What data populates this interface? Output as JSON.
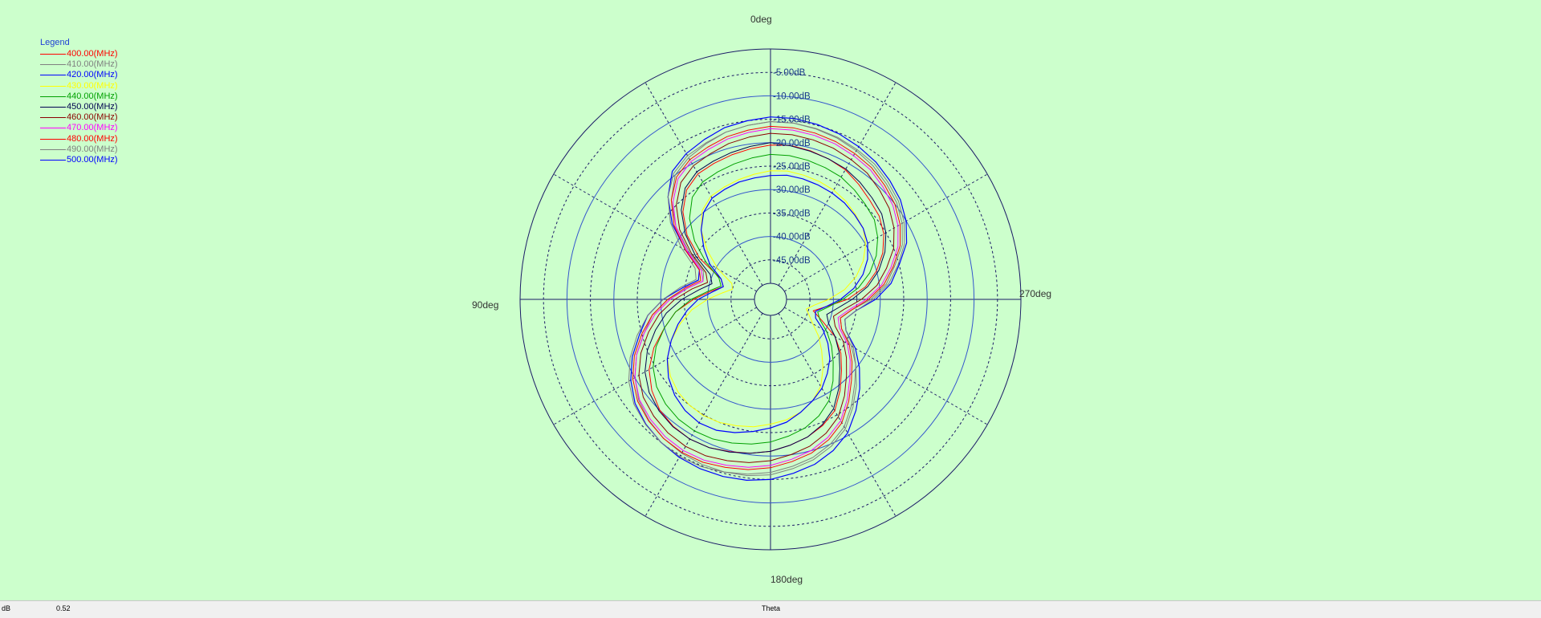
{
  "chart_data": {
    "type": "polar",
    "title": "",
    "legend": {
      "title": "Legend",
      "placement": "top-left"
    },
    "angle_labels": {
      "top": "0deg",
      "left": "90deg",
      "bottom": "180deg",
      "right": "270deg"
    },
    "angle_direction": "counterclockwise",
    "radial_unit": "dB",
    "radial_range": [
      -50,
      0
    ],
    "radial_ticks": [
      -5,
      -10,
      -15,
      -20,
      -25,
      -30,
      -35,
      -40,
      -45
    ],
    "radial_tick_labels": [
      "-5.00dB",
      "-10.00dB",
      "-15.00dB",
      "-20.00dB",
      "-25.00dB",
      "-30.00dB",
      "-35.00dB",
      "-40.00dB",
      "-45.00dB"
    ],
    "angle_grid_step_deg": 30,
    "grid": true,
    "series": [
      {
        "name": "400.00(MHz)",
        "color": "#ff0000",
        "width": 1.0,
        "values": [
          -20.5,
          -21.0,
          -21.5,
          -22.0,
          -22.5,
          -24.0,
          -27.0,
          -31.0,
          -36.0,
          -42.0,
          -43.0,
          -40.5,
          -37.0,
          -33.0,
          -30.0,
          -26.5,
          -23.5,
          -21.5,
          -20.0,
          -19.3,
          -19.0,
          -19.2,
          -19.8,
          -20.3,
          -21.0,
          -22.0,
          -23.0,
          -24.3,
          -26.0,
          -29.0,
          -32.0,
          -34.5,
          -37.5,
          -41.5,
          -44.0,
          -41.5,
          -37.0,
          -33.0,
          -30.0,
          -27.5,
          -25.5,
          -24.2,
          -23.5,
          -22.5,
          -21.5,
          -21.0,
          -20.6,
          -20.3,
          -20.4
        ]
      },
      {
        "name": "410.00(MHz)",
        "color": "#808080",
        "width": 1.0,
        "values": [
          -15.5,
          -16.0,
          -16.5,
          -17.5,
          -18.5,
          -20.0,
          -23.5,
          -28.0,
          -33.5,
          -38.0,
          -38.5,
          -35.5,
          -31.5,
          -28.0,
          -25.5,
          -22.5,
          -20.0,
          -18.0,
          -16.8,
          -16.0,
          -15.5,
          -15.3,
          -15.3,
          -15.5,
          -16.0,
          -17.0,
          -18.0,
          -19.5,
          -21.5,
          -24.5,
          -27.5,
          -30.5,
          -33.5,
          -37.0,
          -38.0,
          -36.0,
          -32.0,
          -28.5,
          -26.0,
          -23.0,
          -21.0,
          -19.5,
          -18.5,
          -17.5,
          -16.8,
          -16.2,
          -15.8,
          -15.5,
          -15.6
        ]
      },
      {
        "name": "420.00(MHz)",
        "color": "#0000ff",
        "width": 1.2,
        "values": [
          -14.5,
          -15.0,
          -15.5,
          -16.5,
          -17.5,
          -19.0,
          -22.5,
          -27.0,
          -32.5,
          -37.0,
          -37.5,
          -34.5,
          -30.5,
          -27.0,
          -24.5,
          -21.5,
          -19.0,
          -17.0,
          -15.8,
          -15.0,
          -14.5,
          -14.3,
          -14.3,
          -14.5,
          -15.0,
          -16.0,
          -17.0,
          -18.5,
          -20.5,
          -23.5,
          -26.5,
          -29.5,
          -32.5,
          -36.0,
          -37.0,
          -35.0,
          -31.0,
          -27.5,
          -25.0,
          -22.0,
          -20.0,
          -18.5,
          -17.5,
          -16.5,
          -15.8,
          -15.2,
          -14.8,
          -14.5,
          -14.6
        ]
      },
      {
        "name": "430.00(MHz)",
        "color": "#ffff00",
        "width": 1.0,
        "values": [
          -26.0,
          -26.5,
          -27.0,
          -27.5,
          -28.0,
          -29.5,
          -32.5,
          -36.5,
          -40.5,
          -44.5,
          -45.0,
          -43.0,
          -40.0,
          -36.5,
          -33.5,
          -30.5,
          -28.0,
          -26.5,
          -25.5,
          -25.0,
          -24.8,
          -25.0,
          -25.5,
          -26.0,
          -26.8,
          -27.5,
          -28.5,
          -30.0,
          -32.0,
          -35.0,
          -38.0,
          -40.5,
          -43.0,
          -44.5,
          -45.5,
          -44.0,
          -41.0,
          -37.5,
          -34.5,
          -32.0,
          -30.0,
          -28.5,
          -27.8,
          -27.0,
          -26.5,
          -26.2,
          -26.0,
          -25.8,
          -25.9
        ]
      },
      {
        "name": "440.00(MHz)",
        "color": "#00a000",
        "width": 1.0,
        "values": [
          -22.5,
          -23.0,
          -23.5,
          -24.0,
          -24.5,
          -26.0,
          -29.0,
          -33.0,
          -37.5,
          -41.5,
          -42.5,
          -40.0,
          -36.5,
          -33.0,
          -30.0,
          -27.0,
          -24.5,
          -22.8,
          -21.8,
          -21.2,
          -21.0,
          -21.2,
          -21.7,
          -22.3,
          -23.0,
          -24.0,
          -25.0,
          -26.5,
          -28.5,
          -31.5,
          -34.5,
          -37.0,
          -39.5,
          -42.0,
          -43.0,
          -41.0,
          -38.0,
          -34.5,
          -31.5,
          -29.0,
          -27.0,
          -25.5,
          -24.8,
          -24.0,
          -23.3,
          -23.0,
          -22.7,
          -22.5,
          -22.6
        ]
      },
      {
        "name": "450.00(MHz)",
        "color": "#000050",
        "width": 1.0,
        "values": [
          -20.0,
          -20.5,
          -21.0,
          -21.5,
          -22.0,
          -23.5,
          -26.5,
          -30.5,
          -35.0,
          -39.5,
          -40.5,
          -38.0,
          -34.5,
          -31.0,
          -28.0,
          -25.0,
          -22.5,
          -20.8,
          -19.8,
          -19.2,
          -19.0,
          -19.2,
          -19.7,
          -20.3,
          -21.0,
          -22.0,
          -23.0,
          -24.5,
          -26.5,
          -29.5,
          -32.5,
          -35.0,
          -37.5,
          -40.0,
          -41.0,
          -39.0,
          -36.0,
          -32.5,
          -29.5,
          -27.0,
          -25.0,
          -23.5,
          -22.8,
          -22.0,
          -21.3,
          -21.0,
          -20.7,
          -20.4,
          -20.3
        ]
      },
      {
        "name": "460.00(MHz)",
        "color": "#8b0000",
        "width": 1.0,
        "values": [
          -18.0,
          -18.5,
          -19.0,
          -19.8,
          -20.5,
          -22.0,
          -25.0,
          -29.0,
          -34.0,
          -38.5,
          -39.5,
          -36.5,
          -33.0,
          -29.5,
          -26.5,
          -23.5,
          -21.0,
          -19.2,
          -18.2,
          -17.5,
          -17.2,
          -17.3,
          -17.8,
          -18.3,
          -19.0,
          -20.0,
          -21.0,
          -22.5,
          -24.5,
          -27.5,
          -30.5,
          -33.0,
          -35.5,
          -38.5,
          -39.5,
          -37.5,
          -34.0,
          -30.5,
          -27.8,
          -25.0,
          -23.0,
          -21.5,
          -20.5,
          -19.5,
          -19.0,
          -18.5,
          -18.2,
          -18.0,
          -18.0
        ]
      },
      {
        "name": "470.00(MHz)",
        "color": "#ff00ff",
        "width": 1.0,
        "values": [
          -17.0,
          -17.5,
          -18.0,
          -18.8,
          -19.5,
          -21.0,
          -24.0,
          -28.0,
          -33.0,
          -37.5,
          -38.5,
          -35.5,
          -32.0,
          -28.5,
          -25.5,
          -22.5,
          -20.0,
          -18.2,
          -17.2,
          -16.5,
          -16.2,
          -16.3,
          -16.8,
          -17.3,
          -18.0,
          -19.0,
          -20.0,
          -21.5,
          -23.5,
          -26.5,
          -29.5,
          -32.0,
          -34.5,
          -37.5,
          -38.5,
          -36.5,
          -33.0,
          -29.5,
          -26.8,
          -24.0,
          -22.0,
          -20.5,
          -19.5,
          -18.5,
          -18.0,
          -17.5,
          -17.2,
          -17.0,
          -17.0
        ]
      },
      {
        "name": "480.00(MHz)",
        "color": "#ff0000",
        "width": 1.0,
        "values": [
          -16.5,
          -17.0,
          -17.5,
          -18.3,
          -19.0,
          -20.5,
          -23.5,
          -27.5,
          -32.5,
          -37.0,
          -38.0,
          -35.0,
          -31.5,
          -28.0,
          -25.0,
          -22.0,
          -19.5,
          -17.7,
          -16.7,
          -16.0,
          -15.7,
          -15.8,
          -16.3,
          -16.8,
          -17.5,
          -18.5,
          -19.5,
          -21.0,
          -23.0,
          -26.0,
          -29.0,
          -31.5,
          -34.0,
          -37.0,
          -38.0,
          -36.0,
          -32.5,
          -29.0,
          -26.3,
          -23.5,
          -21.5,
          -20.0,
          -19.0,
          -18.0,
          -17.5,
          -17.0,
          -16.7,
          -16.5,
          -16.5
        ]
      },
      {
        "name": "490.00(MHz)",
        "color": "#808080",
        "width": 1.0,
        "values": [
          -15.5,
          -16.0,
          -16.5,
          -17.3,
          -18.0,
          -19.5,
          -22.5,
          -26.5,
          -31.5,
          -36.0,
          -37.0,
          -34.0,
          -30.5,
          -27.0,
          -24.0,
          -21.0,
          -18.5,
          -16.7,
          -15.7,
          -15.0,
          -14.7,
          -14.8,
          -15.3,
          -15.8,
          -16.5,
          -17.5,
          -18.5,
          -20.0,
          -22.0,
          -25.0,
          -28.0,
          -30.5,
          -33.0,
          -36.0,
          -37.0,
          -35.0,
          -31.5,
          -28.0,
          -25.3,
          -22.5,
          -20.5,
          -19.0,
          -18.0,
          -17.0,
          -16.5,
          -16.0,
          -15.7,
          -15.5,
          -15.5
        ]
      },
      {
        "name": "500.00(MHz)",
        "color": "#0000ff",
        "width": 1.2,
        "values": [
          -27.0,
          -27.3,
          -27.5,
          -28.0,
          -28.5,
          -30.0,
          -32.5,
          -35.5,
          -38.5,
          -42.0,
          -43.0,
          -41.0,
          -38.0,
          -35.5,
          -33.0,
          -30.5,
          -28.0,
          -26.0,
          -24.5,
          -23.5,
          -23.0,
          -23.2,
          -24.0,
          -25.0,
          -26.0,
          -27.0,
          -28.5,
          -30.0,
          -31.5,
          -33.5,
          -35.5,
          -38.0,
          -40.5,
          -43.0,
          -43.5,
          -41.5,
          -38.5,
          -35.5,
          -33.0,
          -31.0,
          -29.5,
          -28.5,
          -28.0,
          -27.5,
          -27.2,
          -27.0,
          -26.8,
          -26.7,
          -26.8
        ]
      }
    ]
  },
  "status_bar": {
    "left_label": "dB",
    "left_value": "0.52",
    "center_label": "Theta"
  }
}
